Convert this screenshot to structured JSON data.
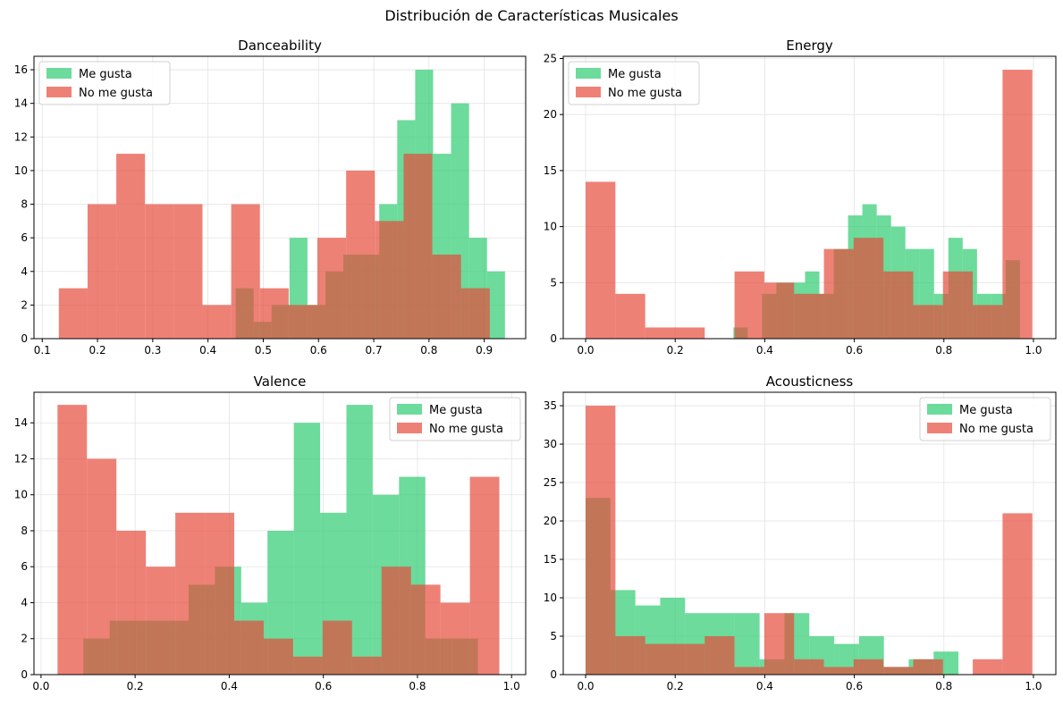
{
  "suptitle": "Distribución de Características Musicales",
  "colors": {
    "me_gusta": "#2ecc71",
    "no_me_gusta": "#e74c3c",
    "overlap": "#c0704f"
  },
  "chart_data": [
    {
      "type": "histogram",
      "title": "Danceability",
      "xlabel": "",
      "ylabel": "",
      "xlim": [
        0.085,
        0.975
      ],
      "ylim": [
        0,
        16.8
      ],
      "xticks": [
        0.1,
        0.2,
        0.3,
        0.4,
        0.5,
        0.6,
        0.7,
        0.8,
        0.9
      ],
      "xtick_labels": [
        "0.1",
        "0.2",
        "0.3",
        "0.4",
        "0.5",
        "0.6",
        "0.7",
        "0.8",
        "0.9"
      ],
      "yticks": [
        0,
        2,
        4,
        6,
        8,
        10,
        12,
        14,
        16
      ],
      "ytick_labels": [
        "0",
        "2",
        "4",
        "6",
        "8",
        "10",
        "12",
        "14",
        "16"
      ],
      "grid": true,
      "legend": "top-left",
      "series": [
        {
          "name": "Me gusta",
          "color": "#2ecc71",
          "edges": [
            0.45,
            0.4825,
            0.515,
            0.5475,
            0.58,
            0.6125,
            0.645,
            0.6775,
            0.71,
            0.7425,
            0.775,
            0.8075,
            0.84,
            0.8725,
            0.905,
            0.9375,
            0.97
          ],
          "counts": [
            3,
            1,
            2,
            6,
            2,
            4,
            5,
            5,
            8,
            13,
            16,
            11,
            14,
            6,
            4,
            0
          ]
        },
        {
          "name": "No me gusta",
          "color": "#e74c3c",
          "edges": [
            0.13,
            0.182,
            0.234,
            0.286,
            0.338,
            0.39,
            0.442,
            0.494,
            0.546,
            0.598,
            0.65,
            0.702,
            0.754,
            0.806,
            0.858,
            0.91
          ],
          "counts": [
            3,
            8,
            11,
            8,
            8,
            2,
            8,
            3,
            2,
            6,
            10,
            7,
            11,
            5,
            3
          ]
        }
      ]
    },
    {
      "type": "histogram",
      "title": "Energy",
      "xlabel": "",
      "ylabel": "",
      "xlim": [
        -0.05,
        1.05
      ],
      "ylim": [
        0,
        25.2
      ],
      "xticks": [
        0,
        0.2,
        0.4,
        0.6,
        0.8,
        1.0
      ],
      "xtick_labels": [
        "0.0",
        "0.2",
        "0.4",
        "0.6",
        "0.8",
        "1.0"
      ],
      "yticks": [
        0,
        5,
        10,
        15,
        20,
        25
      ],
      "ytick_labels": [
        "0",
        "5",
        "10",
        "15",
        "20",
        "25"
      ],
      "grid": true,
      "legend": "top-left",
      "series": [
        {
          "name": "Me gusta",
          "color": "#2ecc71",
          "edges": [
            0.33,
            0.362,
            0.394,
            0.426,
            0.458,
            0.49,
            0.522,
            0.554,
            0.586,
            0.618,
            0.65,
            0.682,
            0.714,
            0.746,
            0.778,
            0.81,
            0.842,
            0.874,
            0.906,
            0.938,
            0.97
          ],
          "counts": [
            1,
            0,
            4,
            5,
            5,
            6,
            4,
            8,
            11,
            12,
            11,
            10,
            8,
            8,
            4,
            9,
            8,
            4,
            4,
            7
          ]
        },
        {
          "name": "No me gusta",
          "color": "#e74c3c",
          "edges": [
            0.0,
            0.0665,
            0.133,
            0.1995,
            0.266,
            0.3325,
            0.399,
            0.4655,
            0.532,
            0.5985,
            0.665,
            0.7315,
            0.798,
            0.8645,
            0.931,
            0.9975
          ],
          "counts": [
            14,
            4,
            1,
            1,
            0,
            6,
            5,
            4,
            8,
            9,
            6,
            3,
            6,
            3,
            24
          ]
        }
      ]
    },
    {
      "type": "histogram",
      "title": "Valence",
      "xlabel": "",
      "ylabel": "",
      "xlim": [
        -0.015,
        1.03
      ],
      "ylim": [
        0,
        15.7
      ],
      "xticks": [
        0,
        0.2,
        0.4,
        0.6,
        0.8,
        1.0
      ],
      "xtick_labels": [
        "0.0",
        "0.2",
        "0.4",
        "0.6",
        "0.8",
        "1.0"
      ],
      "yticks": [
        0,
        2,
        4,
        6,
        8,
        10,
        12,
        14
      ],
      "ytick_labels": [
        "0",
        "2",
        "4",
        "6",
        "8",
        "10",
        "12",
        "14"
      ],
      "grid": true,
      "legend": "top-right",
      "series": [
        {
          "name": "Me gusta",
          "color": "#2ecc71",
          "edges": [
            0.09,
            0.1459,
            0.2018,
            0.2577,
            0.3136,
            0.3695,
            0.4254,
            0.4813,
            0.5372,
            0.5931,
            0.649,
            0.7049,
            0.7608,
            0.8167,
            0.8726,
            0.9285
          ],
          "counts": [
            2,
            3,
            3,
            3,
            5,
            6,
            4,
            8,
            14,
            9,
            15,
            10,
            11,
            2,
            2
          ]
        },
        {
          "name": "No me gusta",
          "color": "#e74c3c",
          "edges": [
            0.035,
            0.0976,
            0.1602,
            0.2228,
            0.2854,
            0.348,
            0.4106,
            0.4732,
            0.5358,
            0.5984,
            0.661,
            0.7236,
            0.7862,
            0.8488,
            0.9114,
            0.974
          ],
          "counts": [
            15,
            12,
            8,
            6,
            9,
            9,
            3,
            2,
            1,
            3,
            1,
            6,
            5,
            4,
            11
          ]
        }
      ]
    },
    {
      "type": "histogram",
      "title": "Acousticness",
      "xlabel": "",
      "ylabel": "",
      "xlim": [
        -0.05,
        1.05
      ],
      "ylim": [
        0,
        36.75
      ],
      "xticks": [
        0,
        0.2,
        0.4,
        0.6,
        0.8,
        1.0
      ],
      "xtick_labels": [
        "0.0",
        "0.2",
        "0.4",
        "0.6",
        "0.8",
        "1.0"
      ],
      "yticks": [
        0,
        5,
        10,
        15,
        20,
        25,
        30,
        35
      ],
      "ytick_labels": [
        "0",
        "5",
        "10",
        "15",
        "20",
        "25",
        "30",
        "35"
      ],
      "grid": true,
      "legend": "top-right",
      "series": [
        {
          "name": "Me gusta",
          "color": "#2ecc71",
          "edges": [
            0.0,
            0.0555,
            0.111,
            0.1665,
            0.222,
            0.2775,
            0.333,
            0.3885,
            0.444,
            0.4995,
            0.555,
            0.6105,
            0.666,
            0.7215,
            0.777,
            0.8325
          ],
          "counts": [
            23,
            11,
            9,
            10,
            8,
            8,
            8,
            2,
            8,
            5,
            4,
            5,
            1,
            2,
            3
          ]
        },
        {
          "name": "No me gusta",
          "color": "#e74c3c",
          "edges": [
            0.0,
            0.0665,
            0.133,
            0.1995,
            0.266,
            0.3325,
            0.399,
            0.4655,
            0.532,
            0.5985,
            0.665,
            0.7315,
            0.798,
            0.8645,
            0.931,
            0.9975
          ],
          "counts": [
            35,
            5,
            4,
            4,
            5,
            1,
            8,
            2,
            1,
            2,
            1,
            2,
            0,
            2,
            21
          ]
        }
      ]
    }
  ]
}
